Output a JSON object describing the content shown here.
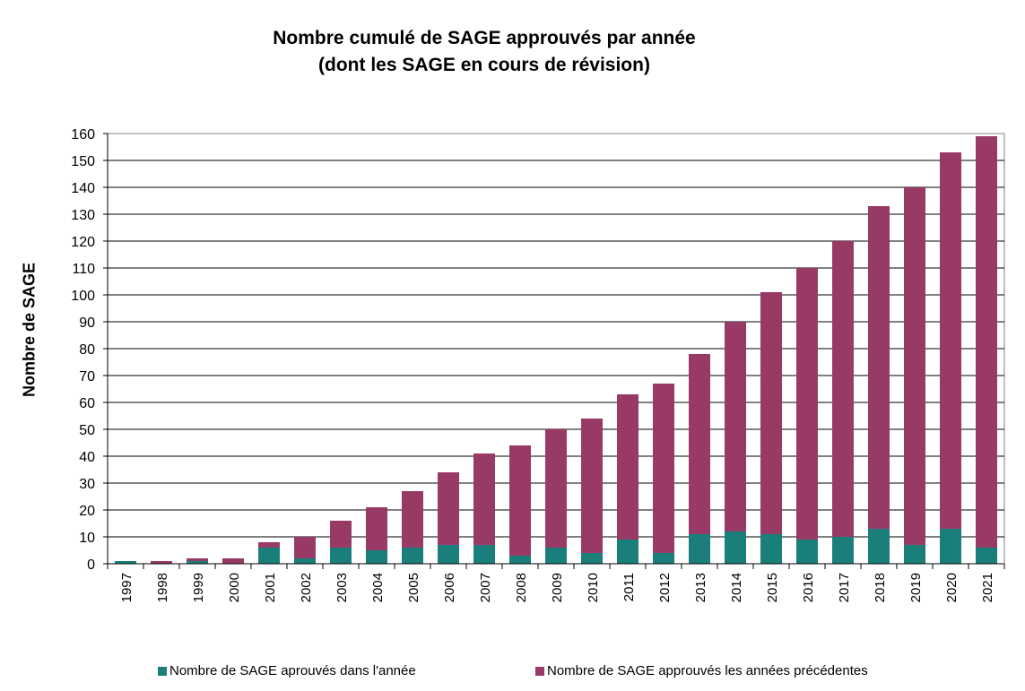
{
  "chart_data": {
    "type": "bar",
    "stacked": true,
    "title": "Nombre cumulé de SAGE approuvés par année",
    "subtitle": "(dont les SAGE en cours de révision)",
    "xlabel": "",
    "ylabel": "Nombre de SAGE",
    "ylim": [
      0,
      160
    ],
    "ytick_step": 10,
    "grid": true,
    "legend_position": "bottom",
    "categories": [
      "1997",
      "1998",
      "1999",
      "2000",
      "2001",
      "2002",
      "2003",
      "2004",
      "2005",
      "2006",
      "2007",
      "2008",
      "2009",
      "2010",
      "2011",
      "2012",
      "2013",
      "2014",
      "2015",
      "2016",
      "2017",
      "2018",
      "2019",
      "2020",
      "2021"
    ],
    "series": [
      {
        "name": "Nombre de SAGE aprouvés dans l'année",
        "color": "#1a7f7a",
        "values": [
          1,
          0,
          1,
          0,
          6,
          2,
          6,
          5,
          6,
          7,
          7,
          3,
          6,
          4,
          9,
          4,
          11,
          12,
          11,
          9,
          10,
          13,
          7,
          13,
          6
        ]
      },
      {
        "name": "Nombre de SAGE approuvés les années précédentes",
        "color": "#993a66",
        "values": [
          0,
          1,
          1,
          2,
          2,
          8,
          10,
          16,
          21,
          27,
          34,
          41,
          44,
          50,
          54,
          63,
          67,
          78,
          90,
          101,
          110,
          120,
          133,
          140,
          153
        ]
      }
    ]
  }
}
